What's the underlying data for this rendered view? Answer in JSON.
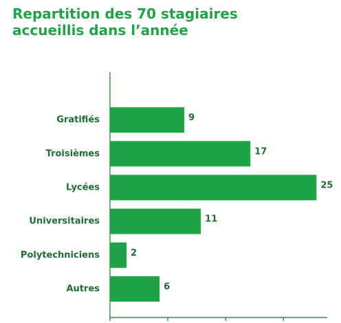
{
  "chart_data": {
    "type": "bar",
    "orientation": "horizontal",
    "title": "Repartition des 70 stagiaires accueillis dans l’année",
    "categories": [
      "Gratifiés",
      "Troisièmes",
      "Lycées",
      "Universitaires",
      "Polytechniciens",
      "Autres"
    ],
    "values": [
      9,
      17,
      25,
      11,
      2,
      6
    ],
    "color": "#1ea446",
    "xlim": [
      0,
      26.3
    ],
    "xticks": [
      0,
      7,
      14,
      21
    ]
  }
}
